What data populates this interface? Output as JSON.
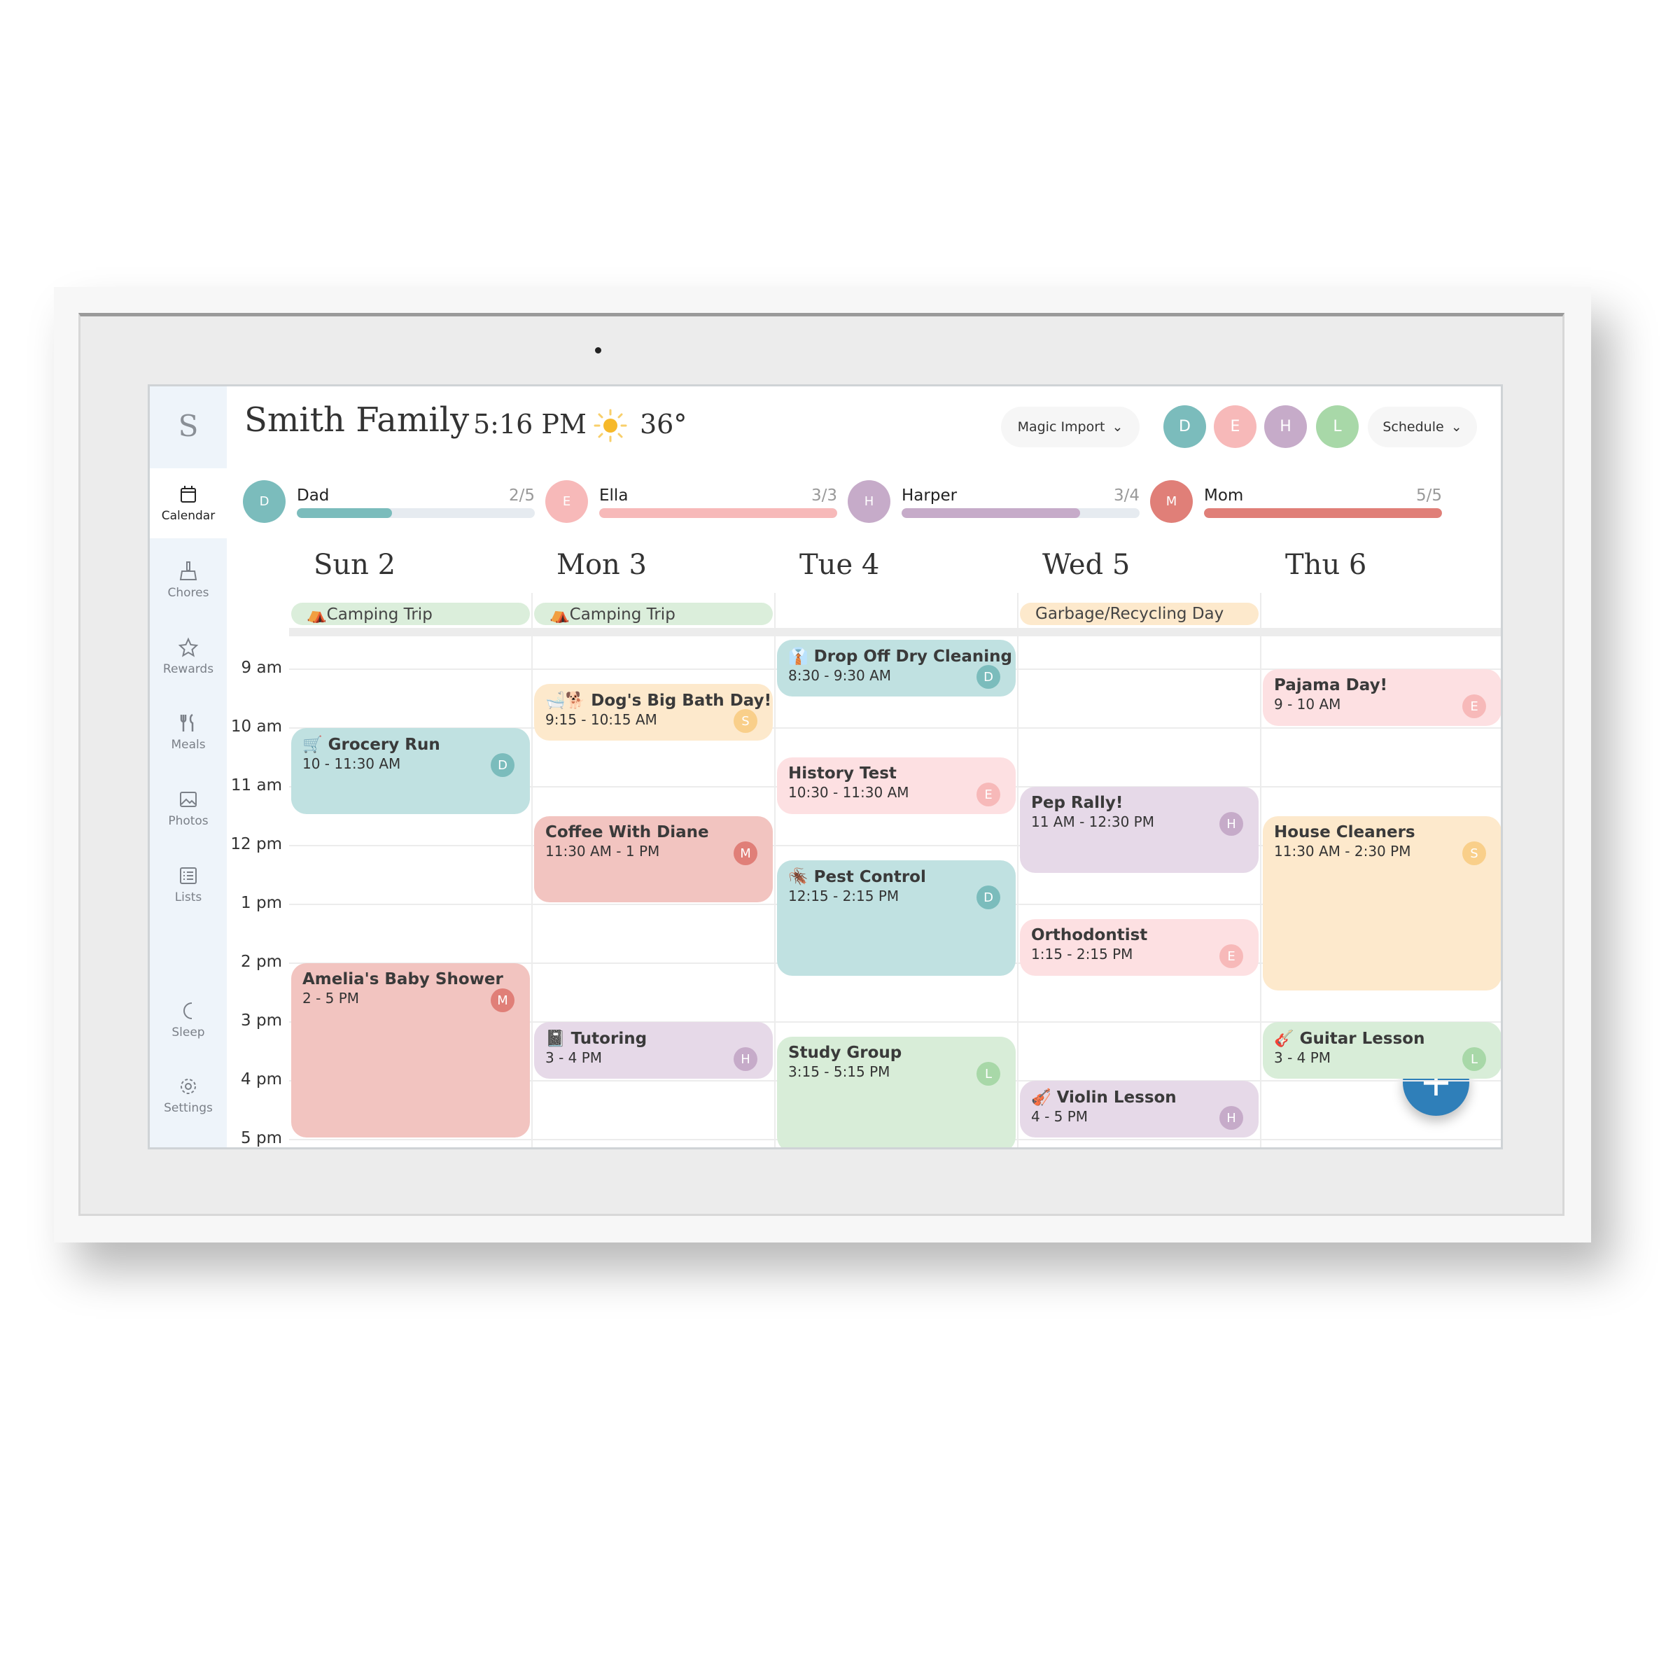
{
  "header": {
    "brand_letter": "S",
    "title": "Smith Family",
    "time": "5:16 PM",
    "weather_icon": "sun-icon",
    "temperature": "36°",
    "magic_import_label": "Magic Import",
    "schedule_label": "Schedule"
  },
  "filter_avatars": [
    {
      "initial": "D",
      "color": "#7bbcbc"
    },
    {
      "initial": "E",
      "color": "#f7b9b9"
    },
    {
      "initial": "H",
      "color": "#c6abc9"
    },
    {
      "initial": "L",
      "color": "#a8d8a8"
    }
  ],
  "sidebar": {
    "items": [
      {
        "label": "Calendar",
        "icon": "calendar-icon",
        "active": true
      },
      {
        "label": "Chores",
        "icon": "broom-icon"
      },
      {
        "label": "Rewards",
        "icon": "star-icon"
      },
      {
        "label": "Meals",
        "icon": "utensils-icon"
      },
      {
        "label": "Photos",
        "icon": "image-icon"
      },
      {
        "label": "Lists",
        "icon": "list-icon"
      },
      {
        "label": "Sleep",
        "icon": "moon-icon"
      },
      {
        "label": "Settings",
        "icon": "gear-icon"
      }
    ]
  },
  "progress": [
    {
      "initial": "D",
      "name": "Dad",
      "count": "2/5",
      "done": 2,
      "total": 5,
      "color": "#7bbcbc"
    },
    {
      "initial": "E",
      "name": "Ella",
      "count": "3/3",
      "done": 3,
      "total": 3,
      "color": "#f7b9b9"
    },
    {
      "initial": "H",
      "name": "Harper",
      "count": "3/4",
      "done": 3,
      "total": 4,
      "color": "#c6abc9"
    },
    {
      "initial": "M",
      "name": "Mom",
      "count": "5/5",
      "done": 5,
      "total": 5,
      "color": "#e07f78"
    }
  ],
  "days": [
    "Sun 2",
    "Mon 3",
    "Tue 4",
    "Wed 5",
    "Thu 6"
  ],
  "all_day": [
    {
      "day": 0,
      "label": "⛺Camping Trip",
      "color": "#dbeedb"
    },
    {
      "day": 1,
      "label": "⛺Camping Trip",
      "color": "#dbeedb"
    },
    {
      "day": 3,
      "label": "Garbage/Recycling Day",
      "color": "#fde9cc"
    }
  ],
  "time_labels": [
    "9 am",
    "10 am",
    "11 am",
    "12 pm",
    "1 pm",
    "2 pm",
    "3 pm",
    "4 pm",
    "5 pm"
  ],
  "owner_colors": {
    "D": "#7bbcbc",
    "E": "#f7b9b9",
    "H": "#c6abc9",
    "L": "#a8d8a8",
    "M": "#e07f78",
    "S": "#f9cf8a"
  },
  "events": [
    {
      "day": 0,
      "title": "🛒 Grocery Run",
      "time": "10 - 11:30 AM",
      "start": 10,
      "end": 11.5,
      "owner": "D",
      "color": "#c0e1e1"
    },
    {
      "day": 0,
      "title": "Amelia's Baby Shower",
      "time": "2 - 5 PM",
      "start": 14,
      "end": 17,
      "owner": "M",
      "color": "#f2c4c0"
    },
    {
      "day": 1,
      "title": "🛁🐕 Dog's Big Bath Day!",
      "time": "9:15 - 10:15 AM",
      "start": 9.25,
      "end": 10.25,
      "owner": "S",
      "color": "#fde9cc"
    },
    {
      "day": 1,
      "title": "Coffee With Diane",
      "time": "11:30 AM - 1 PM",
      "start": 11.5,
      "end": 13,
      "owner": "M",
      "color": "#f2c4c0"
    },
    {
      "day": 1,
      "title": "📓 Tutoring",
      "time": "3 - 4 PM",
      "start": 15,
      "end": 16,
      "owner": "H",
      "color": "#e6d9e8"
    },
    {
      "day": 2,
      "title": "👔 Drop Off Dry Cleaning",
      "time": "8:30 - 9:30 AM",
      "start": 8.5,
      "end": 9.5,
      "owner": "D",
      "color": "#c0e1e1"
    },
    {
      "day": 2,
      "title": "History Test",
      "time": "10:30 - 11:30 AM",
      "start": 10.5,
      "end": 11.5,
      "owner": "E",
      "color": "#fde0e2"
    },
    {
      "day": 2,
      "title": "🪳 Pest Control",
      "time": "12:15 - 2:15 PM",
      "start": 12.25,
      "end": 14.25,
      "owner": "D",
      "color": "#c0e1e1"
    },
    {
      "day": 2,
      "title": "Study Group",
      "time": "3:15 - 5:15 PM",
      "start": 15.25,
      "end": 17.25,
      "owner": "L",
      "color": "#d8edd8"
    },
    {
      "day": 3,
      "title": "Pep Rally!",
      "time": "11 AM - 12:30 PM",
      "start": 11,
      "end": 12.5,
      "owner": "H",
      "color": "#e6d9e8"
    },
    {
      "day": 3,
      "title": "Orthodontist",
      "time": "1:15 - 2:15 PM",
      "start": 13.25,
      "end": 14.25,
      "owner": "E",
      "color": "#fde0e2"
    },
    {
      "day": 3,
      "title": "🎻 Violin Lesson",
      "time": "4 - 5 PM",
      "start": 16,
      "end": 17,
      "owner": "H",
      "color": "#e6d9e8"
    },
    {
      "day": 4,
      "title": "Pajama Day!",
      "time": "9 - 10 AM",
      "start": 9,
      "end": 10,
      "owner": "E",
      "color": "#fde0e2"
    },
    {
      "day": 4,
      "title": "House Cleaners",
      "time": "11:30 AM - 2:30 PM",
      "start": 11.5,
      "end": 14.5,
      "owner": "S",
      "color": "#fde9cc"
    },
    {
      "day": 4,
      "title": "🎸 Guitar Lesson",
      "time": "3 - 4 PM",
      "start": 15,
      "end": 16,
      "owner": "L",
      "color": "#d8edd8"
    }
  ],
  "fab_label": "+"
}
